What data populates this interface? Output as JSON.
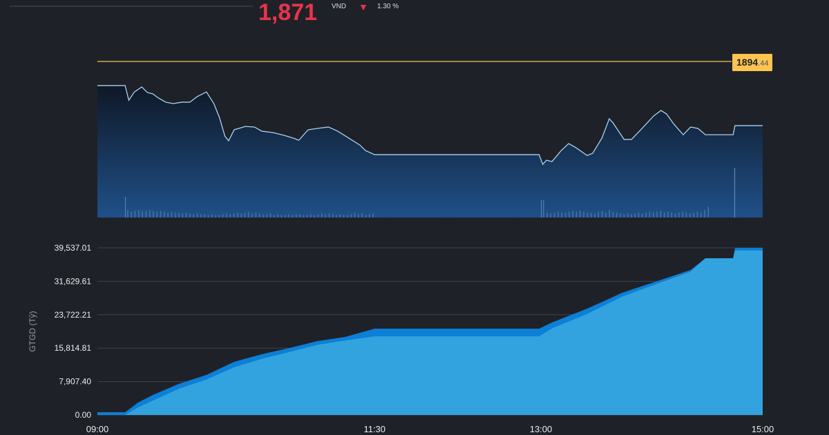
{
  "header": {
    "index_value": "1,871",
    "unit": "VND",
    "direction_icon": "arrow-down-icon",
    "change_pct": "1.30 %"
  },
  "colors": {
    "background": "#1f2128",
    "price_line": "#a8d4f0",
    "reference_line": "#fcc451",
    "down": "#e8344a",
    "value_light": "#33a3df",
    "value_dark": "#0c7fd6"
  },
  "chart_data": [
    {
      "type": "area",
      "reference": {
        "value": 1894.44,
        "label_int": "1894",
        "label_dec": ".44"
      },
      "ylim": [
        1851,
        1897
      ],
      "xlim": [
        "09:00",
        "15:00"
      ],
      "grid": false,
      "price": [
        [
          "09:00",
          1885.7
        ],
        [
          "09:15",
          1885.7
        ],
        [
          "09:17",
          1880.4
        ],
        [
          "09:20",
          1883.4
        ],
        [
          "09:24",
          1885.2
        ],
        [
          "09:27",
          1883.2
        ],
        [
          "09:30",
          1882.7
        ],
        [
          "09:33",
          1881.2
        ],
        [
          "09:37",
          1879.7
        ],
        [
          "09:41",
          1879.2
        ],
        [
          "09:46",
          1879.7
        ],
        [
          "09:50",
          1879.7
        ],
        [
          "09:54",
          1881.7
        ],
        [
          "09:59",
          1883.4
        ],
        [
          "10:03",
          1879.2
        ],
        [
          "10:06",
          1874.2
        ],
        [
          "10:09",
          1867.4
        ],
        [
          "10:11",
          1865.7
        ],
        [
          "10:14",
          1869.7
        ],
        [
          "10:20",
          1870.9
        ],
        [
          "10:25",
          1870.7
        ],
        [
          "10:29",
          1869.2
        ],
        [
          "10:35",
          1868.7
        ],
        [
          "10:41",
          1867.7
        ],
        [
          "10:46",
          1866.7
        ],
        [
          "10:49",
          1865.9
        ],
        [
          "10:54",
          1869.7
        ],
        [
          "10:59",
          1870.2
        ],
        [
          "11:05",
          1870.7
        ],
        [
          "11:10",
          1869.2
        ],
        [
          "11:16",
          1866.7
        ],
        [
          "11:22",
          1864.2
        ],
        [
          "11:25",
          1862.2
        ],
        [
          "11:30",
          1860.7
        ],
        [
          "12:59",
          1860.7
        ],
        [
          "13:01",
          1857.2
        ],
        [
          "13:03",
          1858.7
        ],
        [
          "13:06",
          1858.2
        ],
        [
          "13:11",
          1862.2
        ],
        [
          "13:15",
          1864.7
        ],
        [
          "13:19",
          1863.2
        ],
        [
          "13:25",
          1860.4
        ],
        [
          "13:28",
          1861.2
        ],
        [
          "13:33",
          1866.7
        ],
        [
          "13:37",
          1873.7
        ],
        [
          "13:39",
          1872.2
        ],
        [
          "13:45",
          1866.2
        ],
        [
          "13:49",
          1866.2
        ],
        [
          "13:55",
          1870.4
        ],
        [
          "14:01",
          1874.7
        ],
        [
          "14:05",
          1876.7
        ],
        [
          "14:08",
          1875.4
        ],
        [
          "14:12",
          1871.7
        ],
        [
          "14:17",
          1867.9
        ],
        [
          "14:21",
          1870.7
        ],
        [
          "14:25",
          1870.2
        ],
        [
          "14:29",
          1867.9
        ],
        [
          "14:44",
          1867.9
        ],
        [
          "14:45",
          1871.2
        ],
        [
          "15:00",
          1871.2
        ]
      ],
      "volume_relative": {
        "morning": [
          0.9,
          0.7,
          0.8,
          0.9,
          0.8,
          0.8,
          0.9,
          0.8,
          0.7,
          0.8,
          0.7,
          0.6,
          0.7,
          0.6,
          0.6,
          0.5,
          0.6,
          0.5,
          0.4,
          0.5,
          0.4,
          0.4,
          0.3,
          0.4,
          0.3,
          0.3,
          0.4,
          0.5,
          0.4,
          0.5,
          0.6,
          0.5,
          0.6,
          0.7,
          0.5,
          0.6,
          0.5,
          0.4,
          0.4,
          0.5,
          0.3,
          0.4,
          0.3,
          0.3,
          0.4,
          0.3,
          0.4,
          0.4,
          0.3,
          0.3,
          0.4,
          0.3,
          0.4,
          0.5,
          0.4,
          0.5,
          0.4,
          0.3,
          0.4,
          0.3,
          0.3,
          0.4,
          0.6,
          0.4,
          0.5,
          0.3,
          0.4,
          0.5
        ],
        "morning_spike": 2.5,
        "afternoon": [
          2.1,
          0.6,
          0.5,
          0.6,
          0.7,
          0.6,
          0.6,
          0.7,
          0.8,
          0.7,
          0.8,
          0.7,
          0.6,
          0.6,
          0.5,
          0.7,
          0.8,
          0.6,
          0.9,
          0.7,
          0.6,
          0.5,
          0.4,
          0.5,
          0.4,
          0.5,
          0.6,
          0.5,
          0.6,
          0.7,
          0.6,
          0.7,
          0.8,
          0.6,
          0.7,
          0.6,
          0.5,
          0.6,
          0.7,
          0.6,
          0.5,
          0.6,
          0.7,
          0.6,
          0.9,
          1.3
        ],
        "closing_spike": 6.0
      }
    },
    {
      "type": "area",
      "ylabel": "GTGD (Tỷ)",
      "ylim": [
        0,
        39537.01
      ],
      "yticks": [
        "0.00",
        "7,907.40",
        "15,814.81",
        "23,722.21",
        "31,629.61",
        "39,537.01"
      ],
      "xticks": [
        "09:00",
        "11:30",
        "13:00",
        "15:00"
      ],
      "xlim": [
        "09:00",
        "15:00"
      ],
      "grid": true,
      "series": [
        {
          "values": [
            [
              "09:00",
              650
            ],
            [
              "09:15",
              650
            ],
            [
              "09:22",
              2940
            ],
            [
              "09:30",
              4740
            ],
            [
              "09:44",
              7350
            ],
            [
              "09:59",
              9480
            ],
            [
              "10:14",
              12580
            ],
            [
              "10:29",
              14380
            ],
            [
              "10:44",
              15850
            ],
            [
              "10:59",
              17480
            ],
            [
              "11:14",
              18460
            ],
            [
              "11:30",
              20420
            ],
            [
              "12:59",
              20420
            ],
            [
              "13:06",
              21890
            ],
            [
              "13:25",
              25160
            ],
            [
              "13:44",
              28920
            ],
            [
              "14:02",
              31530
            ],
            [
              "14:21",
              34310
            ],
            [
              "14:29",
              37090
            ],
            [
              "14:44",
              37090
            ],
            [
              "14:45",
              39537
            ],
            [
              "15:00",
              39537
            ]
          ]
        },
        {
          "values": [
            [
              "09:00",
              0
            ],
            [
              "09:15",
              0
            ],
            [
              "09:22",
              1800
            ],
            [
              "09:30",
              3400
            ],
            [
              "09:44",
              6200
            ],
            [
              "09:59",
              8400
            ],
            [
              "10:14",
              11300
            ],
            [
              "10:29",
              13300
            ],
            [
              "10:44",
              14900
            ],
            [
              "10:59",
              16600
            ],
            [
              "11:14",
              17600
            ],
            [
              "11:30",
              18600
            ],
            [
              "12:59",
              18600
            ],
            [
              "13:06",
              20500
            ],
            [
              "13:25",
              23900
            ],
            [
              "13:44",
              28000
            ],
            [
              "14:02",
              30900
            ],
            [
              "14:21",
              33900
            ],
            [
              "14:29",
              37090
            ],
            [
              "14:44",
              37090
            ],
            [
              "14:45",
              38900
            ],
            [
              "15:00",
              38900
            ]
          ]
        }
      ]
    }
  ]
}
